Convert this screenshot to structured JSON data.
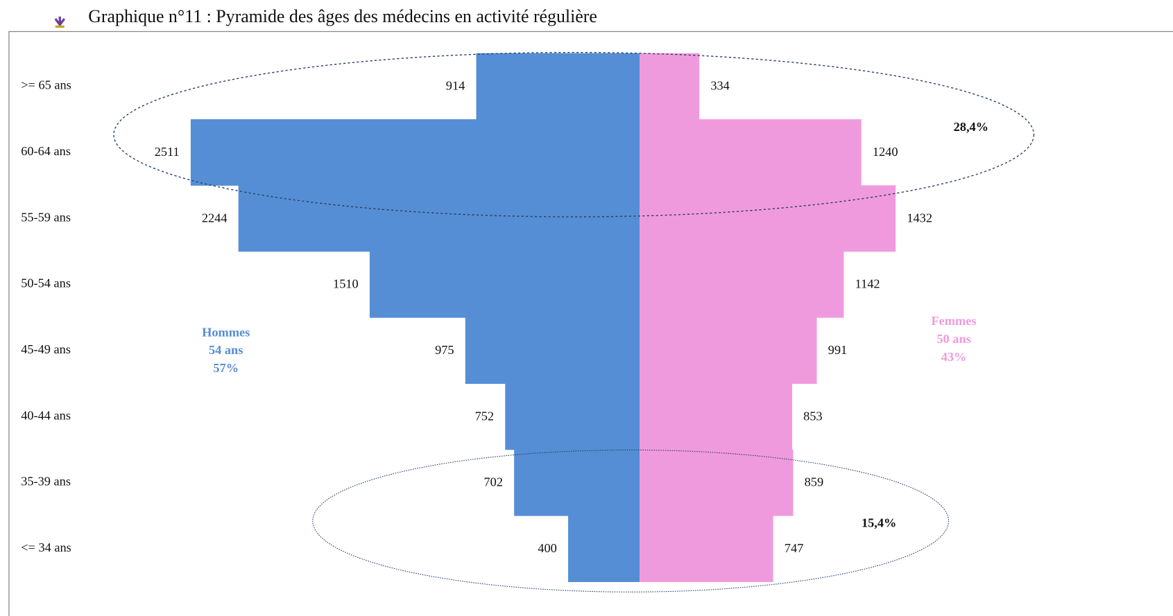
{
  "chart_data": {
    "type": "pyramid",
    "title": "Graphique n°11 : Pyramide des âges des médecins en activité régulière",
    "categories": [
      ">= 65 ans",
      "60-64 ans",
      "55-59 ans",
      "50-54 ans",
      "45-49 ans",
      "40-44 ans",
      "35-39 ans",
      "<= 34 ans"
    ],
    "series": [
      {
        "name": "Hommes",
        "color": "#558ed5",
        "values": [
          914,
          2511,
          2244,
          1510,
          975,
          752,
          702,
          400
        ],
        "notes": [
          "54 ans",
          "57%"
        ]
      },
      {
        "name": "Femmes",
        "color": "#f09ade",
        "values": [
          334,
          1240,
          1432,
          1142,
          991,
          853,
          859,
          747
        ],
        "notes": [
          "50 ans",
          "43%"
        ]
      }
    ],
    "annotations": [
      "28,4%",
      "15,4%"
    ]
  }
}
